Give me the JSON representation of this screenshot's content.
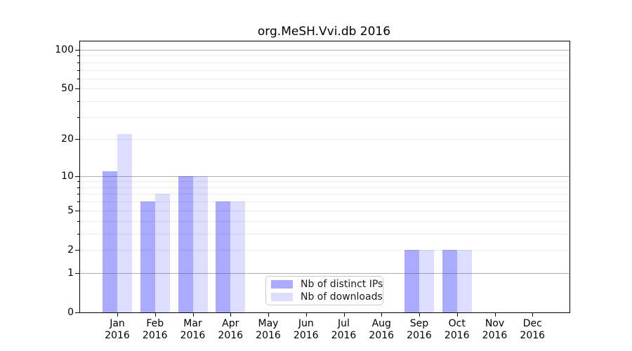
{
  "chart_data": {
    "type": "bar",
    "title": "org.MeSH.Vvi.db 2016",
    "year_label": "2016",
    "categories": [
      "Jan",
      "Feb",
      "Mar",
      "Apr",
      "May",
      "Jun",
      "Jul",
      "Aug",
      "Sep",
      "Oct",
      "Nov",
      "Dec"
    ],
    "series": [
      {
        "name": "Nb of distinct IPs",
        "color": "#aaaaff",
        "values": [
          11,
          6,
          10,
          6,
          0,
          0,
          0,
          0,
          2,
          2,
          0,
          0
        ]
      },
      {
        "name": "Nb of downloads",
        "color": "#ddddff",
        "values": [
          22,
          7,
          10,
          6,
          0,
          0,
          0,
          0,
          2,
          2,
          0,
          0
        ]
      }
    ],
    "y_axis": {
      "scale": "log1p",
      "tick_values": [
        0,
        1,
        2,
        5,
        10,
        20,
        50,
        100
      ],
      "tick_labels": [
        "0",
        "1",
        "2",
        "5",
        "10",
        "20",
        "50",
        "100"
      ],
      "range_min": 0,
      "range_max_visible": 116
    },
    "gridlines": {
      "major": [
        1,
        10,
        100
      ],
      "minor": [
        2,
        3,
        4,
        5,
        6,
        7,
        8,
        9,
        20,
        30,
        40,
        50,
        60,
        70,
        80,
        90
      ]
    },
    "legend": {
      "position": "inside-bottom-center",
      "entries": [
        "Nb of distinct IPs",
        "Nb of downloads"
      ]
    },
    "grid": "on",
    "xlabel": "",
    "ylabel": ""
  }
}
